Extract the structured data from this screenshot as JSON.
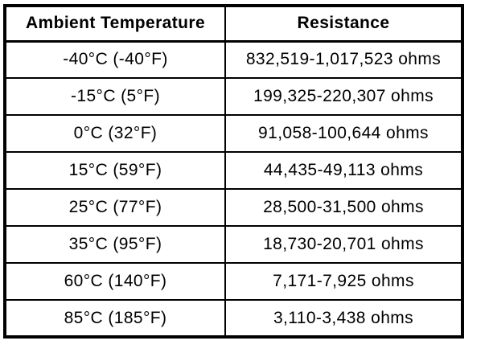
{
  "table": {
    "title": "temperature-resistance-specification",
    "columns": [
      {
        "label": "Ambient Temperature"
      },
      {
        "label": "Resistance"
      }
    ],
    "rows": [
      {
        "temperature": "-40°C (-40°F)",
        "resistance": "832,519-1,017,523 ohms"
      },
      {
        "temperature": "-15°C (5°F)",
        "resistance": "199,325-220,307 ohms"
      },
      {
        "temperature": "0°C (32°F)",
        "resistance": "91,058-100,644 ohms"
      },
      {
        "temperature": "15°C (59°F)",
        "resistance": "44,435-49,113 ohms"
      },
      {
        "temperature": "25°C (77°F)",
        "resistance": "28,500-31,500 ohms"
      },
      {
        "temperature": "35°C (95°F)",
        "resistance": "18,730-20,701 ohms"
      },
      {
        "temperature": "60°C (140°F)",
        "resistance": "7,171-7,925 ohms"
      },
      {
        "temperature": "85°C (185°F)",
        "resistance": "3,110-3,438 ohms"
      }
    ],
    "colors": {
      "border": "#000000",
      "text": "#000000",
      "background": "#ffffff"
    }
  }
}
